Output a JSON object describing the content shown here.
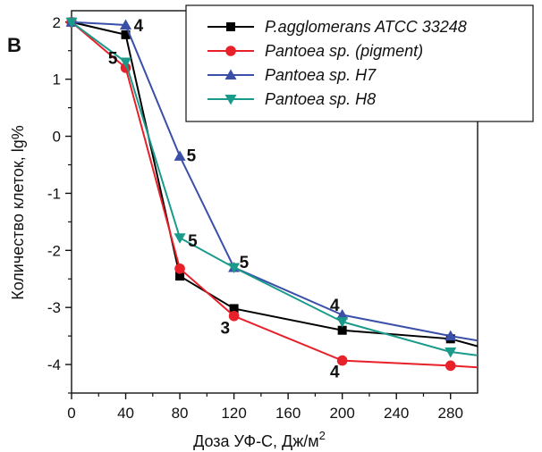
{
  "chart_data": {
    "type": "line",
    "panel_label": "B",
    "xlabel": "Доза УФ-С, Дж/м",
    "xlabel_sup": "2",
    "ylabel": "Количество клеток, lg%",
    "xlim": [
      0,
      300
    ],
    "ylim": [
      -4.5,
      2.2
    ],
    "xticks": [
      0,
      40,
      80,
      120,
      160,
      200,
      240,
      280
    ],
    "yticks": [
      2,
      1,
      0,
      -1,
      -2,
      -3,
      -4
    ],
    "grid": false,
    "legend_position": "top-right",
    "series": [
      {
        "name": "P.agglomerans ATCC 33248",
        "color": "#000000",
        "marker": "square",
        "x": [
          0,
          40,
          80,
          120,
          200,
          280,
          300
        ],
        "y": [
          2.0,
          1.78,
          -2.45,
          -3.02,
          -3.4,
          -3.55,
          -3.68
        ]
      },
      {
        "name": "Pantoea sp. (pigment)",
        "color": "#e8202a",
        "marker": "circle",
        "x": [
          0,
          40,
          80,
          120,
          200,
          280,
          300
        ],
        "y": [
          2.0,
          1.2,
          -2.32,
          -3.15,
          -3.93,
          -4.02,
          -4.05
        ]
      },
      {
        "name": "Pantoea sp. H7",
        "color": "#3a4fa8",
        "marker": "triangle-up",
        "x": [
          0,
          40,
          80,
          120,
          200,
          280,
          300
        ],
        "y": [
          2.0,
          1.95,
          -0.35,
          -2.3,
          -3.13,
          -3.5,
          -3.58
        ]
      },
      {
        "name": "Pantoea sp. H8",
        "color": "#1a9a8a",
        "marker": "triangle-down",
        "x": [
          0,
          40,
          80,
          120,
          200,
          280,
          300
        ],
        "y": [
          2.0,
          1.3,
          -1.78,
          -2.3,
          -3.25,
          -3.78,
          -3.84
        ]
      }
    ],
    "annotations": [
      {
        "text": "4",
        "x": 46,
        "y": 1.95
      },
      {
        "text": "5",
        "x": 27,
        "y": 1.38
      },
      {
        "text": "5",
        "x": 85,
        "y": -0.33
      },
      {
        "text": "5",
        "x": 86,
        "y": -1.82
      },
      {
        "text": "5",
        "x": 124,
        "y": -2.2
      },
      {
        "text": "3",
        "x": 110,
        "y": -3.35
      },
      {
        "text": "4",
        "x": 191,
        "y": -2.95
      },
      {
        "text": "4",
        "x": 191,
        "y": -4.12
      }
    ]
  }
}
